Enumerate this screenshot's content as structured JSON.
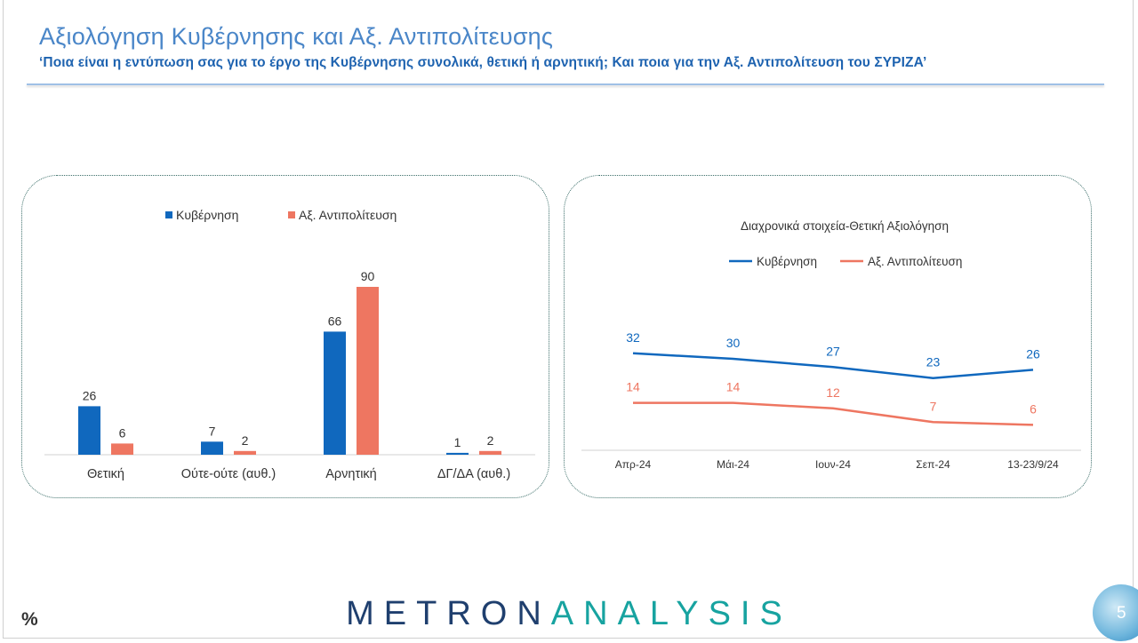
{
  "header": {
    "title": "Αξιολόγηση Κυβέρνησης και Αξ. Αντιπολίτευσης",
    "subtitle": "‘Ποια είναι η εντύπωση σας για το έργο της Κυβέρνησης συνολικά, θετική ή αρνητική; Και ποια για την Αξ. Αντιπολίτευση του ΣΥΡΙΖΑ’"
  },
  "colors": {
    "gov": "#1068be",
    "opp": "#ee7661",
    "title": "#4a86c8",
    "axis": "#d0d0d0"
  },
  "chart_data": [
    {
      "type": "bar",
      "title": "",
      "categories": [
        "Θετική",
        "Ούτε-ούτε (αυθ.)",
        "Αρνητική",
        "ΔΓ/ΔΑ (αυθ.)"
      ],
      "series": [
        {
          "name": "Κυβέρνηση",
          "values": [
            26,
            7,
            66,
            1
          ]
        },
        {
          "name": "Αξ. Αντιπολίτευση",
          "values": [
            6,
            2,
            90,
            2
          ]
        }
      ],
      "ylim": [
        0,
        100
      ],
      "legend": "top"
    },
    {
      "type": "line",
      "title": "Διαχρονικά στοιχεία-Θετική Αξιολόγηση",
      "categories": [
        "Απρ-24",
        "Μάι-24",
        "Ιουν-24",
        "Σεπ-24",
        "13-23/9/24"
      ],
      "series": [
        {
          "name": "Κυβέρνηση",
          "values": [
            32,
            30,
            27,
            23,
            26
          ]
        },
        {
          "name": "Αξ. Αντιπολίτευση",
          "values": [
            14,
            14,
            12,
            7,
            6
          ]
        }
      ],
      "ylim": [
        0,
        40
      ],
      "legend": "top"
    }
  ],
  "footer": {
    "logo_part1": "METRON",
    "logo_part2": "ANALYSIS",
    "percent_sign": "%",
    "page_number": "5"
  }
}
